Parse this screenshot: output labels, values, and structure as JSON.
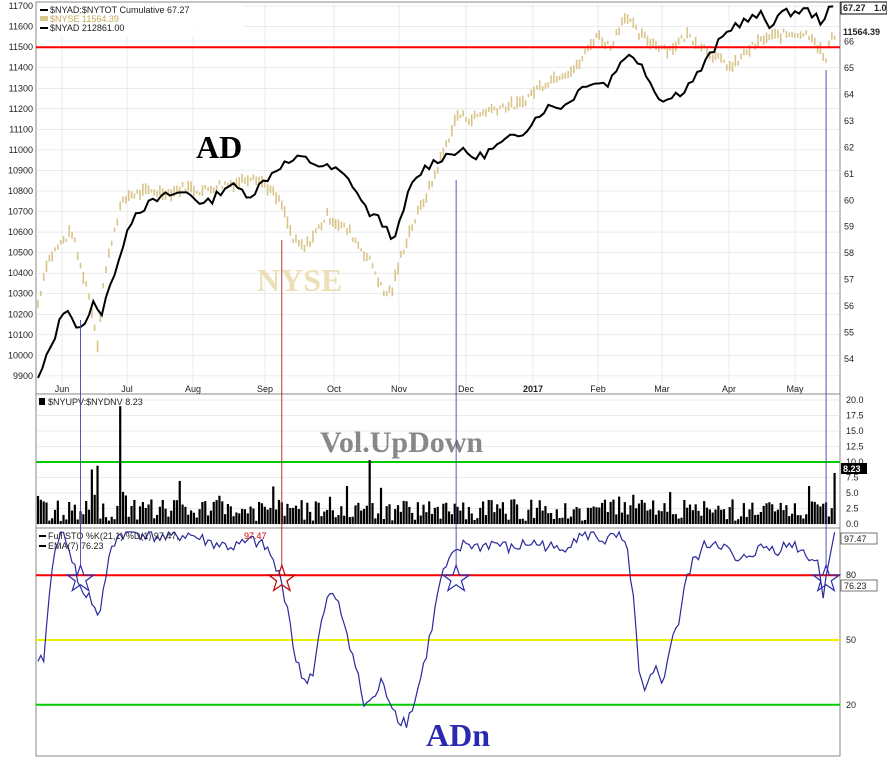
{
  "colors": {
    "ad_line": "#000000",
    "nyse_bars": "#d9c48a",
    "hline_red": "#ff0000",
    "hline_green": "#00cc00",
    "hline_yellow": "#eeee00",
    "volume_bars": "#000000",
    "sto_line": "#2a2a9a",
    "ema_line": "#c00000",
    "marker_blue": "#2a2ab0",
    "marker_red": "#c00000",
    "vline_blue": "#4444aa",
    "vline_red": "#aa2222",
    "ad_label": "#000000",
    "nyse_label": "#ece0b8",
    "vol_label": "#888888",
    "adn_label": "#2a2ab0",
    "grid": "#d8d8d8"
  },
  "annotations": {
    "ad": "AD",
    "nyse": "NYSE",
    "vol": "Vol.UpDown",
    "adn": "ADn"
  },
  "chart_data": [
    {
      "type": "line",
      "panel": "main",
      "legend": {
        "line1": "$NYAD:$NYTOT Cumulative 67.27",
        "line2": "$NYSE 11564.39",
        "line3": "$NYAD 212861.00"
      },
      "x_tick_labels": [
        "Jun",
        "Jul",
        "Aug",
        "Sep",
        "Oct",
        "Nov",
        "Dec",
        "2017",
        "Feb",
        "Mar",
        "Apr",
        "May"
      ],
      "left_axis": {
        "ticks": [
          "9900",
          "10000",
          "10100",
          "10200",
          "10300",
          "10400",
          "10500",
          "10600",
          "10700",
          "10800",
          "10900",
          "11000",
          "11100",
          "11200",
          "11300",
          "11400",
          "11500",
          "11600",
          "11700"
        ],
        "range": [
          9880,
          11720
        ]
      },
      "right_axis": {
        "ticks": [
          "54",
          "55",
          "56",
          "57",
          "58",
          "59",
          "60",
          "61",
          "62",
          "63",
          "64",
          "65",
          "66"
        ],
        "range": [
          53.2,
          67.5
        ]
      },
      "last_value_labels": {
        "ad_ratio": "67.27",
        "ad_ratio_suffix": "1.0",
        "nyse": "11564.39"
      },
      "red_line_level": 11500,
      "series": [
        {
          "name": "$NYAD:$NYTOT Cumulative",
          "axis": "right",
          "points": [
            [
              0,
              53.2
            ],
            [
              8,
              54.3
            ],
            [
              14,
              55.2
            ],
            [
              20,
              56.1
            ],
            [
              26,
              55.3
            ],
            [
              32,
              55.0
            ],
            [
              38,
              56.2
            ],
            [
              44,
              55.6
            ],
            [
              50,
              56.8
            ],
            [
              56,
              57.3
            ],
            [
              62,
              58.9
            ],
            [
              70,
              59.6
            ],
            [
              80,
              59.9
            ],
            [
              92,
              60.2
            ],
            [
              106,
              60.3
            ],
            [
              118,
              59.8
            ],
            [
              134,
              60.6
            ],
            [
              150,
              60.2
            ],
            [
              170,
              61.3
            ],
            [
              186,
              61.6
            ],
            [
              200,
              61.3
            ],
            [
              212,
              61.1
            ],
            [
              222,
              60.6
            ],
            [
              232,
              59.6
            ],
            [
              242,
              59.2
            ],
            [
              252,
              58.5
            ],
            [
              262,
              60.4
            ],
            [
              272,
              61.2
            ],
            [
              284,
              61.6
            ],
            [
              296,
              61.9
            ],
            [
              310,
              61.6
            ],
            [
              326,
              62.1
            ],
            [
              342,
              62.6
            ],
            [
              358,
              63.5
            ],
            [
              372,
              63.6
            ],
            [
              388,
              64.5
            ],
            [
              402,
              64.4
            ],
            [
              414,
              65.5
            ],
            [
              426,
              65.2
            ],
            [
              436,
              64.0
            ],
            [
              444,
              63.8
            ],
            [
              456,
              64.2
            ],
            [
              466,
              64.8
            ],
            [
              478,
              65.8
            ],
            [
              490,
              66.6
            ],
            [
              500,
              66.8
            ],
            [
              510,
              67.0
            ],
            [
              516,
              66.6
            ],
            [
              522,
              67.0
            ],
            [
              530,
              67.1
            ],
            [
              542,
              67.2
            ],
            [
              552,
              66.8
            ],
            [
              560,
              67.27
            ]
          ]
        },
        {
          "name": "$NYSE",
          "axis": "left",
          "style": "ohlc-bars",
          "points": [
            [
              0,
              10250
            ],
            [
              6,
              10450
            ],
            [
              12,
              10510
            ],
            [
              18,
              10560
            ],
            [
              24,
              10600
            ],
            [
              30,
              10430
            ],
            [
              34,
              10350
            ],
            [
              38,
              10220
            ],
            [
              42,
              10060
            ],
            [
              46,
              10340
            ],
            [
              52,
              10560
            ],
            [
              58,
              10720
            ],
            [
              64,
              10780
            ],
            [
              72,
              10790
            ],
            [
              82,
              10800
            ],
            [
              92,
              10790
            ],
            [
              104,
              10820
            ],
            [
              116,
              10800
            ],
            [
              128,
              10830
            ],
            [
              140,
              10840
            ],
            [
              152,
              10880
            ],
            [
              162,
              10820
            ],
            [
              172,
              10730
            ],
            [
              180,
              10560
            ],
            [
              188,
              10520
            ],
            [
              196,
              10600
            ],
            [
              204,
              10680
            ],
            [
              212,
              10640
            ],
            [
              220,
              10600
            ],
            [
              228,
              10520
            ],
            [
              236,
              10440
            ],
            [
              244,
              10300
            ],
            [
              250,
              10320
            ],
            [
              256,
              10480
            ],
            [
              262,
              10600
            ],
            [
              270,
              10720
            ],
            [
              278,
              10840
            ],
            [
              286,
              10990
            ],
            [
              296,
              11170
            ],
            [
              306,
              11150
            ],
            [
              316,
              11190
            ],
            [
              326,
              11210
            ],
            [
              340,
              11220
            ],
            [
              352,
              11300
            ],
            [
              366,
              11360
            ],
            [
              380,
              11400
            ],
            [
              394,
              11560
            ],
            [
              404,
              11500
            ],
            [
              414,
              11660
            ],
            [
              424,
              11560
            ],
            [
              434,
              11520
            ],
            [
              446,
              11490
            ],
            [
              458,
              11560
            ],
            [
              470,
              11500
            ],
            [
              480,
              11440
            ],
            [
              490,
              11400
            ],
            [
              500,
              11480
            ],
            [
              512,
              11540
            ],
            [
              524,
              11560
            ],
            [
              536,
              11570
            ],
            [
              546,
              11560
            ],
            [
              556,
              11430
            ],
            [
              560,
              11564
            ]
          ]
        }
      ]
    },
    {
      "type": "bar",
      "panel": "volume",
      "legend": "$NYUPV:$NYDNV 8.23",
      "series_name": "$NYUPV:$NYDNV",
      "y_ticks": [
        "0.0",
        "2.5",
        "5.0",
        "7.5",
        "10.0",
        "12.5",
        "15.0",
        "17.5",
        "20.0"
      ],
      "ylim": [
        0,
        20
      ],
      "reference_line": 10,
      "last_value": "8.23",
      "spikes": [
        {
          "x": 38,
          "value": 8.8
        },
        {
          "x": 42,
          "value": 9.4
        },
        {
          "x": 58,
          "value": 19.0
        },
        {
          "x": 234,
          "value": 10.3
        },
        {
          "x": 562,
          "value": 8.23
        }
      ],
      "typical_range": [
        0.5,
        4.0
      ]
    },
    {
      "type": "line",
      "panel": "stochastic",
      "legend": {
        "sto": "Full STO %K(21,1) %D(1) 97.47,",
        "sto_value_red": "97.47",
        "ema": "EMA(7) 76.23"
      },
      "y_ticks": [
        "20",
        "50",
        "80"
      ],
      "ylim": [
        0,
        100
      ],
      "reference_lines": {
        "red": 80,
        "yellow": 50,
        "green": 20
      },
      "last_value_labels": {
        "sto": "97.47",
        "ema": "76.23"
      },
      "series": [
        {
          "name": "Full STO %K(21,1)",
          "points": [
            [
              0,
              38
            ],
            [
              4,
              42
            ],
            [
              8,
              70
            ],
            [
              12,
              94
            ],
            [
              16,
              99
            ],
            [
              20,
              97
            ],
            [
              24,
              88
            ],
            [
              28,
              78
            ],
            [
              32,
              70
            ],
            [
              36,
              72
            ],
            [
              40,
              64
            ],
            [
              44,
              62
            ],
            [
              48,
              80
            ],
            [
              52,
              94
            ],
            [
              58,
              99
            ],
            [
              66,
              100
            ],
            [
              76,
              99
            ],
            [
              90,
              97
            ],
            [
              106,
              99
            ],
            [
              122,
              95
            ],
            [
              138,
              93
            ],
            [
              152,
              96
            ],
            [
              162,
              92
            ],
            [
              170,
              80
            ],
            [
              176,
              66
            ],
            [
              182,
              40
            ],
            [
              188,
              31
            ],
            [
              194,
              35
            ],
            [
              200,
              58
            ],
            [
              206,
              72
            ],
            [
              212,
              66
            ],
            [
              218,
              54
            ],
            [
              224,
              38
            ],
            [
              230,
              20
            ],
            [
              236,
              22
            ],
            [
              242,
              30
            ],
            [
              248,
              23
            ],
            [
              254,
              14
            ],
            [
              260,
              12
            ],
            [
              266,
              22
            ],
            [
              272,
              38
            ],
            [
              278,
              56
            ],
            [
              284,
              78
            ],
            [
              290,
              86
            ],
            [
              296,
              91
            ],
            [
              302,
              95
            ],
            [
              310,
              93
            ],
            [
              322,
              95
            ],
            [
              334,
              92
            ],
            [
              346,
              95
            ],
            [
              358,
              94
            ],
            [
              368,
              91
            ],
            [
              378,
              97
            ],
            [
              390,
              99
            ],
            [
              400,
              96
            ],
            [
              410,
              98
            ],
            [
              416,
              90
            ],
            [
              420,
              70
            ],
            [
              424,
              34
            ],
            [
              428,
              25
            ],
            [
              432,
              31
            ],
            [
              436,
              36
            ],
            [
              440,
              32
            ],
            [
              444,
              38
            ],
            [
              448,
              54
            ],
            [
              452,
              58
            ],
            [
              456,
              74
            ],
            [
              462,
              86
            ],
            [
              470,
              93
            ],
            [
              478,
              96
            ],
            [
              486,
              92
            ],
            [
              494,
              85
            ],
            [
              502,
              90
            ],
            [
              512,
              93
            ],
            [
              522,
              92
            ],
            [
              532,
              95
            ],
            [
              542,
              90
            ],
            [
              550,
              86
            ],
            [
              554,
              72
            ],
            [
              558,
              88
            ],
            [
              562,
              97.47
            ]
          ]
        }
      ],
      "star_markers": [
        {
          "x": 30,
          "value": 80,
          "color": "blue"
        },
        {
          "x": 172,
          "value": 80,
          "color": "red"
        },
        {
          "x": 295,
          "value": 80,
          "color": "blue"
        },
        {
          "x": 556,
          "value": 80,
          "color": "blue"
        }
      ]
    }
  ]
}
